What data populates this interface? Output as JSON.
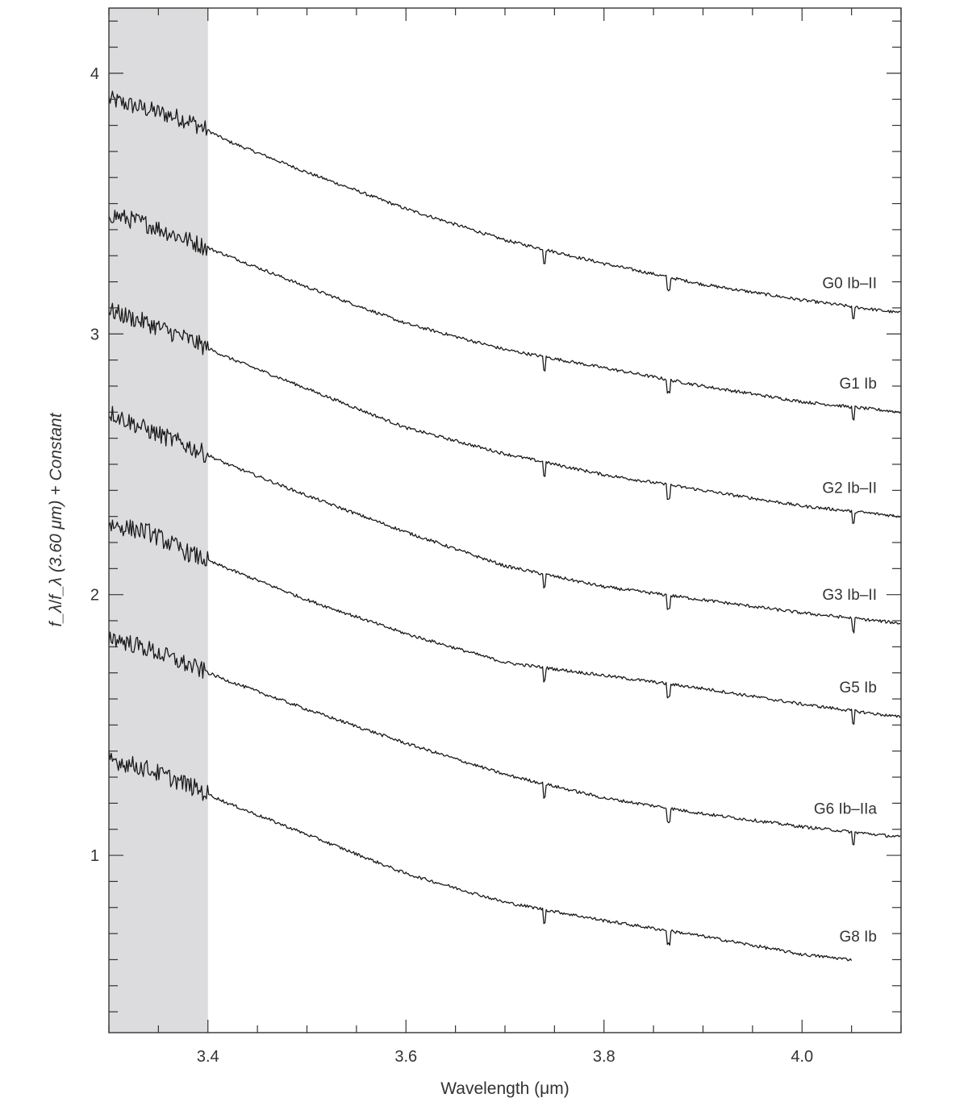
{
  "chart_data": {
    "type": "line",
    "xlabel": "Wavelength (μm)",
    "ylabel": "f_λ/f_λ (3.60 μm) + Constant",
    "xlim": [
      3.3,
      4.1
    ],
    "ylim": [
      0.32,
      4.25
    ],
    "x_ticks": [
      3.4,
      3.6,
      3.8,
      4.0
    ],
    "x_tick_labels": [
      "3.4",
      "3.6",
      "3.8",
      "4.0"
    ],
    "y_ticks": [
      1,
      2,
      3,
      4
    ],
    "y_tick_labels": [
      "1",
      "2",
      "3",
      "4"
    ],
    "shaded_region": [
      3.3,
      3.4
    ],
    "grid": false,
    "series": [
      {
        "name": "G0 Ib–II",
        "x": [
          3.3,
          3.34,
          3.38,
          3.42,
          3.5,
          3.6,
          3.7,
          3.8,
          3.9,
          4.0,
          4.1
        ],
        "values": [
          3.9,
          3.86,
          3.82,
          3.74,
          3.62,
          3.48,
          3.36,
          3.27,
          3.19,
          3.13,
          3.08
        ]
      },
      {
        "name": "G1 Ib",
        "x": [
          3.3,
          3.34,
          3.38,
          3.42,
          3.5,
          3.6,
          3.7,
          3.8,
          3.9,
          4.0,
          4.1
        ],
        "values": [
          3.46,
          3.42,
          3.36,
          3.3,
          3.18,
          3.04,
          2.94,
          2.87,
          2.8,
          2.74,
          2.7
        ]
      },
      {
        "name": "G2 Ib–II",
        "x": [
          3.3,
          3.34,
          3.38,
          3.42,
          3.5,
          3.6,
          3.7,
          3.8,
          3.9,
          4.0,
          4.1
        ],
        "values": [
          3.09,
          3.04,
          2.98,
          2.91,
          2.79,
          2.64,
          2.54,
          2.46,
          2.4,
          2.34,
          2.3
        ]
      },
      {
        "name": "G3 Ib–II",
        "x": [
          3.3,
          3.34,
          3.38,
          3.42,
          3.5,
          3.6,
          3.7,
          3.8,
          3.9,
          4.0,
          4.1
        ],
        "values": [
          2.7,
          2.63,
          2.57,
          2.5,
          2.38,
          2.24,
          2.11,
          2.03,
          1.98,
          1.93,
          1.89
        ]
      },
      {
        "name": "G5 Ib",
        "x": [
          3.3,
          3.34,
          3.38,
          3.42,
          3.5,
          3.6,
          3.7,
          3.8,
          3.9,
          4.0,
          4.1
        ],
        "values": [
          2.27,
          2.24,
          2.16,
          2.1,
          1.98,
          1.85,
          1.74,
          1.69,
          1.64,
          1.58,
          1.53
        ]
      },
      {
        "name": "G6 Ib–IIa",
        "x": [
          3.3,
          3.34,
          3.38,
          3.42,
          3.5,
          3.6,
          3.7,
          3.8,
          3.9,
          4.0,
          4.1
        ],
        "values": [
          1.84,
          1.79,
          1.73,
          1.67,
          1.56,
          1.43,
          1.31,
          1.22,
          1.16,
          1.11,
          1.07
        ]
      },
      {
        "name": "G8 Ib",
        "x": [
          3.3,
          3.34,
          3.38,
          3.42,
          3.5,
          3.6,
          3.7,
          3.8,
          3.9,
          4.0,
          4.05
        ],
        "values": [
          1.37,
          1.33,
          1.27,
          1.2,
          1.08,
          0.93,
          0.82,
          0.75,
          0.69,
          0.62,
          0.6
        ]
      }
    ]
  }
}
